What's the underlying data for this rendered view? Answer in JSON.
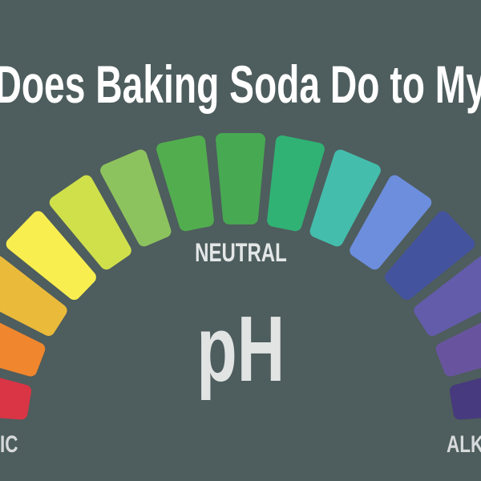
{
  "colors": {
    "background": "#4e5d5d",
    "title_text": "#ffffff",
    "neutral_text": "#e4e7e7",
    "ph_text": "#e2e4e4",
    "edge_label_text": "#d7dada"
  },
  "title": {
    "visible_text": "Does Baking Soda Do to My"
  },
  "gauge": {
    "neutral_label": "NEUTRAL",
    "ph_label": "pH",
    "acidic_label_visible": "IC",
    "alkaline_label_visible": "ALK",
    "segments": [
      {
        "name": "red",
        "color": "#d93545"
      },
      {
        "name": "orange",
        "color": "#f0862d"
      },
      {
        "name": "gold",
        "color": "#eaba3b"
      },
      {
        "name": "yellow",
        "color": "#f8ee50"
      },
      {
        "name": "lime",
        "color": "#cfe04b"
      },
      {
        "name": "yellow-green",
        "color": "#8dc35e"
      },
      {
        "name": "light-green",
        "color": "#52ad4f"
      },
      {
        "name": "green",
        "color": "#47a952"
      },
      {
        "name": "emerald",
        "color": "#30b275"
      },
      {
        "name": "teal",
        "color": "#44bdac"
      },
      {
        "name": "cornflower-blue",
        "color": "#6d8edd"
      },
      {
        "name": "indigo-blue",
        "color": "#43539e"
      },
      {
        "name": "blue-violet",
        "color": "#635caa"
      },
      {
        "name": "purple",
        "color": "#68549e"
      },
      {
        "name": "dark-purple",
        "color": "#473a7e"
      }
    ]
  }
}
